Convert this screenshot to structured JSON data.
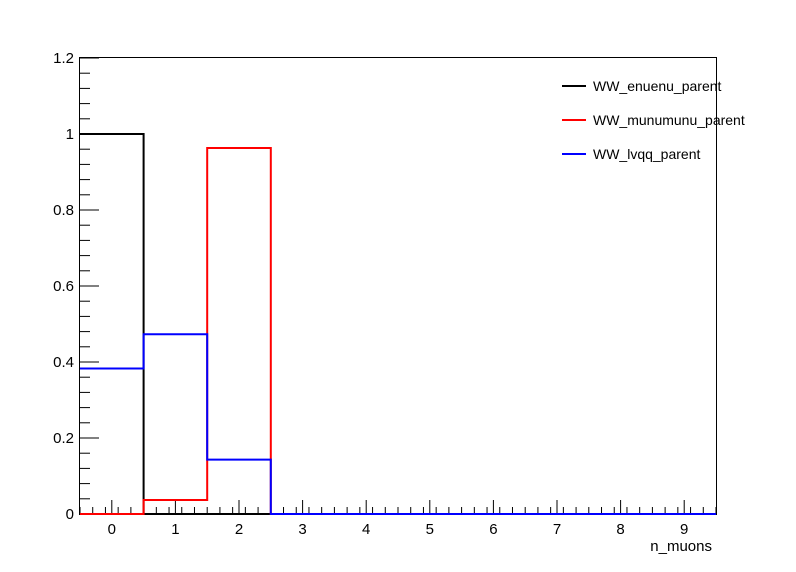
{
  "chart_data": {
    "type": "line",
    "subtype": "step-histogram",
    "title": "",
    "xlabel": "n_muons",
    "ylabel": "",
    "xlim": [
      -0.5,
      9.5
    ],
    "ylim": [
      0,
      1.2
    ],
    "bin_edges": [
      -0.5,
      0.5,
      1.5,
      2.5,
      3.5,
      4.5,
      5.5,
      6.5,
      7.5,
      8.5,
      9.5
    ],
    "x_ticks": [
      "0",
      "1",
      "2",
      "3",
      "4",
      "5",
      "6",
      "7",
      "8",
      "9"
    ],
    "y_ticks": [
      "0",
      "0.2",
      "0.4",
      "0.6",
      "0.8",
      "1",
      "1.2"
    ],
    "grid": false,
    "legend_position": "top-right",
    "series": [
      {
        "name": "WW_enuenu_parent",
        "color": "#000000",
        "values": [
          1.0,
          0,
          0,
          0,
          0,
          0,
          0,
          0,
          0,
          0
        ]
      },
      {
        "name": "WW_munumunu_parent",
        "color": "#ff0000",
        "values": [
          0,
          0.037,
          0.963,
          0,
          0,
          0,
          0,
          0,
          0,
          0
        ]
      },
      {
        "name": "WW_lvqq_parent",
        "color": "#0000ff",
        "values": [
          0.383,
          0.473,
          0.143,
          0,
          0,
          0,
          0,
          0,
          0,
          0
        ]
      }
    ]
  }
}
